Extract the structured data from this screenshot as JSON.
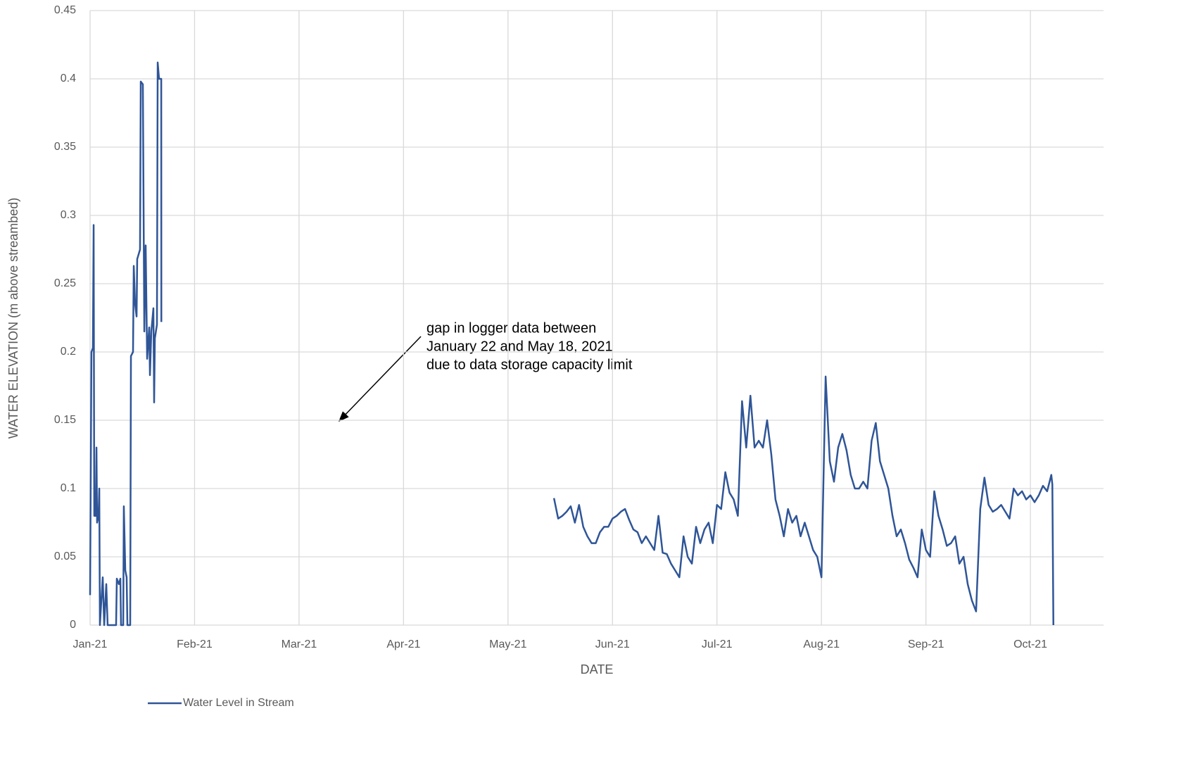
{
  "chart_data": {
    "type": "line",
    "annotation": [
      "gap in logger data between",
      "January 22 and May 18, 2021",
      "due to data storage capacity limit"
    ],
    "xlabel": "DATE",
    "ylabel": "WATER ELEVATION (m above streambed)",
    "xlim": [
      0,
      9.7
    ],
    "xticks": [
      {
        "value": 0,
        "label": "Jan-21"
      },
      {
        "value": 1,
        "label": "Feb-21"
      },
      {
        "value": 2,
        "label": "Mar-21"
      },
      {
        "value": 3,
        "label": "Apr-21"
      },
      {
        "value": 4,
        "label": "May-21"
      },
      {
        "value": 5,
        "label": "Jun-21"
      },
      {
        "value": 6,
        "label": "Jul-21"
      },
      {
        "value": 7,
        "label": "Aug-21"
      },
      {
        "value": 8,
        "label": "Sep-21"
      },
      {
        "value": 9,
        "label": "Oct-21"
      }
    ],
    "ylim": [
      0,
      0.45
    ],
    "yticks": [
      0,
      0.05,
      0.1,
      0.15,
      0.2,
      0.25,
      0.3,
      0.35,
      0.4,
      0.45
    ],
    "grid": true,
    "legend": "bottom",
    "x": [
      0,
      0.013,
      0.027,
      0.034,
      0.04,
      0.054,
      0.061,
      0.067,
      0.081,
      0.088,
      0.094,
      0.121,
      0.135,
      0.155,
      0.168,
      0.249,
      0.256,
      0.276,
      0.29,
      0.296,
      0.317,
      0.323,
      0.337,
      0.35,
      0.357,
      0.384,
      0.391,
      0.411,
      0.418,
      0.431,
      0.445,
      0.451,
      0.478,
      0.485,
      0.505,
      0.519,
      0.532,
      0.546,
      0.566,
      0.573,
      0.586,
      0.606,
      0.613,
      0.62,
      0.64,
      0.647,
      0.66,
      0.681,
      0.682,
      3,
      4.44,
      4.48,
      4.52,
      4.56,
      4.6,
      4.64,
      4.68,
      4.72,
      4.76,
      4.8,
      4.84,
      4.88,
      4.92,
      4.96,
      5,
      5.04,
      5.08,
      5.12,
      5.16,
      5.2,
      5.24,
      5.28,
      5.32,
      5.36,
      5.4,
      5.44,
      5.48,
      5.52,
      5.56,
      5.6,
      5.64,
      5.68,
      5.72,
      5.76,
      5.8,
      5.84,
      5.88,
      5.92,
      5.96,
      6,
      6.04,
      6.08,
      6.12,
      6.16,
      6.2,
      6.24,
      6.28,
      6.32,
      6.36,
      6.4,
      6.44,
      6.48,
      6.52,
      6.56,
      6.6,
      6.64,
      6.68,
      6.72,
      6.76,
      6.8,
      6.84,
      6.88,
      6.92,
      6.96,
      7,
      7.04,
      7.08,
      7.12,
      7.16,
      7.2,
      7.24,
      7.28,
      7.32,
      7.36,
      7.4,
      7.44,
      7.48,
      7.52,
      7.56,
      7.6,
      7.64,
      7.68,
      7.72,
      7.76,
      7.8,
      7.84,
      7.88,
      7.92,
      7.96,
      8,
      8.04,
      8.08,
      8.12,
      8.16,
      8.2,
      8.24,
      8.28,
      8.32,
      8.36,
      8.4,
      8.44,
      8.48,
      8.52,
      8.56,
      8.6,
      8.64,
      8.68,
      8.72,
      8.76,
      8.8,
      8.84,
      8.88,
      8.92,
      8.96,
      9,
      9.04,
      9.08,
      9.12,
      9.16,
      9.2,
      9.21,
      9.22
    ],
    "series": [
      {
        "name": "Water Level in Stream",
        "color": "#2f5597",
        "values": [
          0.022,
          0.2,
          0.203,
          0.293,
          0.08,
          0.08,
          0.13,
          0.075,
          0.08,
          0.1,
          0,
          0.035,
          0,
          0.03,
          0,
          0,
          0.034,
          0.03,
          0.034,
          0,
          0,
          0.087,
          0.04,
          0.035,
          0,
          0,
          0.197,
          0.2,
          0.263,
          0.235,
          0.226,
          0.268,
          0.275,
          0.398,
          0.396,
          0.215,
          0.278,
          0.195,
          0.218,
          0.183,
          0.215,
          0.232,
          0.163,
          0.21,
          0.22,
          0.412,
          0.4,
          0.4,
          0.222,
          null,
          0.093,
          0.078,
          0.08,
          0.083,
          0.087,
          0.075,
          0.088,
          0.072,
          0.065,
          0.06,
          0.06,
          0.068,
          0.072,
          0.072,
          0.078,
          0.08,
          0.083,
          0.085,
          0.077,
          0.07,
          0.068,
          0.06,
          0.065,
          0.06,
          0.055,
          0.08,
          0.053,
          0.052,
          0.045,
          0.04,
          0.035,
          0.065,
          0.05,
          0.045,
          0.072,
          0.06,
          0.07,
          0.075,
          0.06,
          0.088,
          0.085,
          0.112,
          0.097,
          0.092,
          0.08,
          0.164,
          0.13,
          0.168,
          0.13,
          0.135,
          0.13,
          0.15,
          0.125,
          0.092,
          0.08,
          0.065,
          0.085,
          0.075,
          0.08,
          0.065,
          0.075,
          0.065,
          0.055,
          0.05,
          0.035,
          0.182,
          0.12,
          0.105,
          0.13,
          0.14,
          0.128,
          0.11,
          0.1,
          0.1,
          0.105,
          0.1,
          0.135,
          0.148,
          0.12,
          0.11,
          0.1,
          0.08,
          0.065,
          0.07,
          0.06,
          0.048,
          0.042,
          0.035,
          0.07,
          0.055,
          0.05,
          0.098,
          0.08,
          0.07,
          0.058,
          0.06,
          0.065,
          0.045,
          0.05,
          0.03,
          0.018,
          0.01,
          0.085,
          0.108,
          0.088,
          0.083,
          0.085,
          0.088,
          0.083,
          0.078,
          0.1,
          0.095,
          0.098,
          0.092,
          0.095,
          0.09,
          0.095,
          0.102,
          0.098,
          0.11,
          0.103,
          0
        ]
      }
    ]
  }
}
